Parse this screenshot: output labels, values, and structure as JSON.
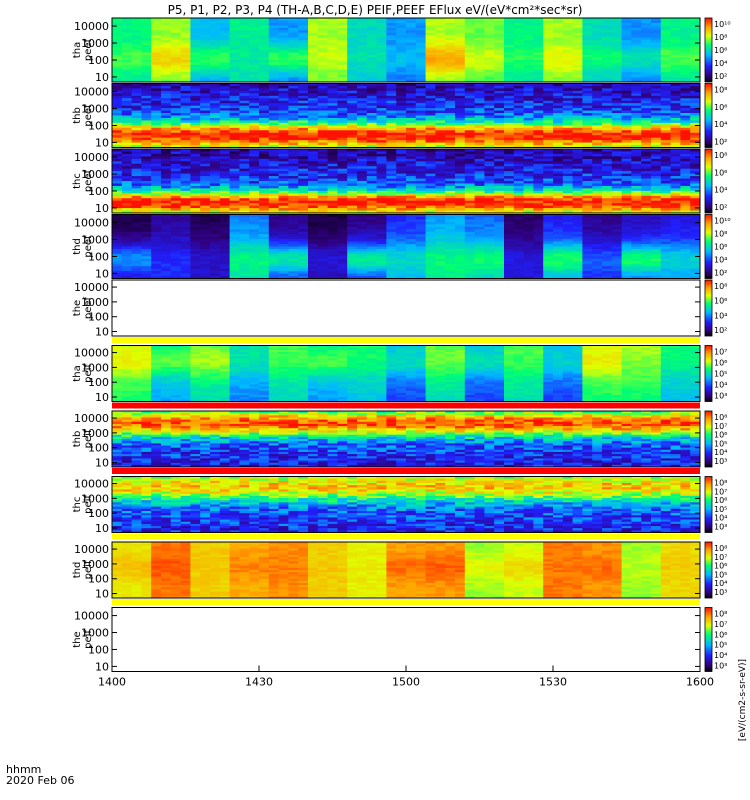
{
  "title": "P5, P1, P2, P3, P4 (TH-A,B,C,D,E) PEIF,PEEF EFlux eV/(eV*cm²*sec*sr)",
  "time_axis": {
    "label_line1": "hhmm",
    "label_line2": "2020 Feb 06",
    "tick_labels": [
      "1400",
      "1430",
      "1500",
      "1530",
      "1600"
    ]
  },
  "colorbar_unit": "[eV/(cm2-s-sr-eV)]",
  "colors": {
    "no_data": "#ffffff",
    "flag_yellow": "#ffff00",
    "flag_red": "#ff0000",
    "palette": [
      "#000000",
      "#30007f",
      "#2020ff",
      "#00b8ff",
      "#00ff70",
      "#e0ff00",
      "#ffa000",
      "#ff1000"
    ]
  },
  "chart_data": {
    "type": "heatmap",
    "x": {
      "units": "UT hhmm",
      "range": [
        "1400",
        "1600"
      ]
    },
    "y": {
      "units": "energy (eV)",
      "scale": "log",
      "range": [
        5,
        30000
      ],
      "tick_labels": [
        "10",
        "100",
        "1000",
        "10000"
      ]
    },
    "panels": [
      {
        "label1": "tha",
        "label2": "peef",
        "cb_ticks": [
          "10¹⁰",
          "10⁸",
          "10⁶",
          "10⁴",
          "10²"
        ],
        "style": "blocks",
        "base": 0.52,
        "slope": 0.01,
        "seed": 1,
        "plasma": 0.92,
        "plasma_e": 0.35
      },
      {
        "label1": "thb",
        "label2": "peef",
        "cb_ticks": [
          "10⁸",
          "10⁶",
          "10⁴",
          "10²"
        ],
        "style": "noisy",
        "base": 0.32,
        "slope": -0.06,
        "seed": 2,
        "peak": 0.93,
        "peak_e": 0.18,
        "peak_w": 0.2
      },
      {
        "label1": "thc",
        "label2": "peef",
        "cb_ticks": [
          "10⁸",
          "10⁶",
          "10⁴",
          "10²"
        ],
        "style": "noisy",
        "base": 0.3,
        "slope": -0.06,
        "seed": 3,
        "peak": 0.92,
        "peak_e": 0.15,
        "peak_w": 0.18
      },
      {
        "label1": "thd",
        "label2": "peef",
        "cb_ticks": [
          "10¹⁰",
          "10⁸",
          "10⁶",
          "10⁴",
          "10²"
        ],
        "style": "blocks",
        "base": 0.3,
        "slope": -0.03,
        "seed": 4,
        "plasma": 0.82,
        "plasma_e": 0.3
      },
      {
        "label1": "the",
        "label2": "peef",
        "cb_ticks": [
          "10⁸",
          "10⁶",
          "10⁴",
          "10²"
        ],
        "style": "empty",
        "flag_bar": "yellow"
      },
      {
        "label1": "tha",
        "label2": "peif",
        "cb_ticks": [
          "10⁷",
          "10⁶",
          "10⁵",
          "10⁴",
          "10³"
        ],
        "style": "blocks",
        "base": 0.5,
        "slope": 0.03,
        "seed": 5,
        "plasma": 0.72,
        "plasma_e": 0.7,
        "flag_bar": "red"
      },
      {
        "label1": "thb",
        "label2": "peif",
        "cb_ticks": [
          "10⁸",
          "10⁷",
          "10⁶",
          "10⁵",
          "10⁴",
          "10³"
        ],
        "style": "noisy",
        "base": 0.35,
        "slope": 0.05,
        "seed": 6,
        "peak": 0.88,
        "peak_e": 0.78,
        "peak_w": 0.22,
        "flag_bar": "red"
      },
      {
        "label1": "thc",
        "label2": "peif",
        "cb_ticks": [
          "10⁸",
          "10⁷",
          "10⁶",
          "10⁵",
          "10⁴",
          "10³"
        ],
        "style": "noisy",
        "base": 0.35,
        "slope": 0.04,
        "seed": 7,
        "peak": 0.75,
        "peak_e": 0.82,
        "peak_w": 0.25,
        "flag_bar": "yellow"
      },
      {
        "label1": "thd",
        "label2": "peif",
        "cb_ticks": [
          "10⁸",
          "10⁷",
          "10⁶",
          "10⁵",
          "10⁴",
          "10³"
        ],
        "style": "blocks",
        "base": 0.78,
        "slope": 0.0,
        "seed": 8,
        "plasma": 0.9,
        "plasma_e": 0.55,
        "flag_bar": "yellow"
      },
      {
        "label1": "the",
        "label2": "peif",
        "cb_ticks": [
          "10⁸",
          "10⁷",
          "10⁶",
          "10⁵",
          "10⁴",
          "10³"
        ],
        "style": "empty"
      }
    ]
  }
}
